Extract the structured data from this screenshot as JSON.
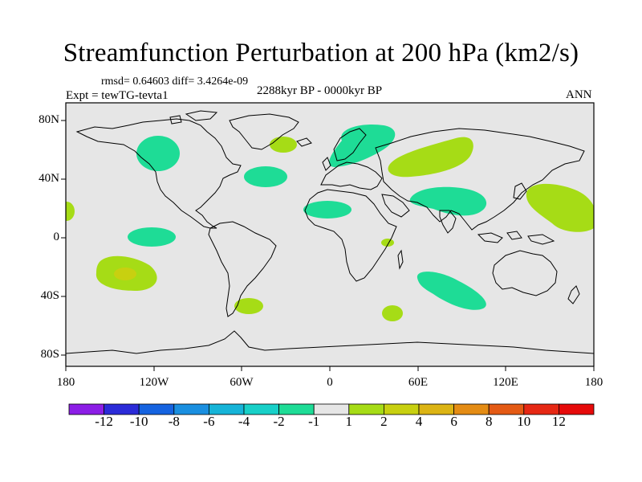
{
  "title": "Streamfunction Perturbation at 200 hPa (km2/s)",
  "stats": "rmsd= 0.64603 diff= 3.4264e-09",
  "experiment": "Expt = tewTG-tevta1",
  "period": "2288kyr BP - 0000kyr BP",
  "season": "ANN",
  "axes": {
    "lon_ticks": [
      "180",
      "120W",
      "60W",
      "0",
      "60E",
      "120E",
      "180"
    ],
    "lat_ticks": [
      "80N",
      "40N",
      "0",
      "40S",
      "80S"
    ]
  },
  "colorbar": {
    "labels": [
      "-12",
      "-10",
      "-8",
      "-6",
      "-4",
      "-2",
      "-1",
      "1",
      "2",
      "4",
      "6",
      "8",
      "10",
      "12"
    ],
    "colors": [
      "#8c1ee6",
      "#2b2bd8",
      "#1563e0",
      "#1a8fe0",
      "#16b4d8",
      "#18d0c8",
      "#1edc96",
      "#e6e6e6",
      "#a6dc16",
      "#c8d010",
      "#dcb414",
      "#e48c14",
      "#e45a14",
      "#e62814",
      "#e60a0a"
    ]
  },
  "chart_data": {
    "type": "map",
    "title": "Streamfunction Perturbation at 200 hPa (km2/s)",
    "units": "km2/s",
    "projection": "cylindrical equidistant",
    "lon_range": [
      -180,
      180
    ],
    "lat_range": [
      -90,
      90
    ],
    "fill_default_range": [
      -1,
      1
    ],
    "anomalies": [
      {
        "name": "north-canada",
        "lon": -123,
        "lat": 61,
        "class": "-2 to -1"
      },
      {
        "name": "north-atlantic-west",
        "lon": -44,
        "lat": 42,
        "class": "-2 to -1"
      },
      {
        "name": "greenland-east",
        "lon": -37,
        "lat": 64,
        "class": "1 to 2"
      },
      {
        "name": "north-africa",
        "lon": 1,
        "lat": 19,
        "class": "-2 to -1"
      },
      {
        "name": "scandinavia",
        "lon": 22,
        "lat": 68,
        "class": "-2 to -1"
      },
      {
        "name": "central-asia",
        "lon": 66,
        "lat": 58,
        "class": "1 to 2"
      },
      {
        "name": "south-asia",
        "lon": 85,
        "lat": 25,
        "class": "-2 to -1"
      },
      {
        "name": "northwest-pacific",
        "lon": 156,
        "lat": 22,
        "class": "1 to 2"
      },
      {
        "name": "east-pacific-equator",
        "lon": -122,
        "lat": 0,
        "class": "-2 to -1"
      },
      {
        "name": "southeast-pacific",
        "lon": -138,
        "lat": -25,
        "class": "1 to 4"
      },
      {
        "name": "south-america-tip",
        "lon": -59,
        "lat": -47,
        "class": "1 to 2"
      },
      {
        "name": "east-africa",
        "lon": 40,
        "lat": -3,
        "class": "1 to 2"
      },
      {
        "name": "south-indian-ocean",
        "lon": 43,
        "lat": -52,
        "class": "1 to 2"
      },
      {
        "name": "southern-indian-ocean-east",
        "lon": 80,
        "lat": -38,
        "class": "-2 to -1"
      },
      {
        "name": "date-line-west",
        "lon": -178,
        "lat": 18,
        "class": "1 to 2"
      }
    ]
  }
}
